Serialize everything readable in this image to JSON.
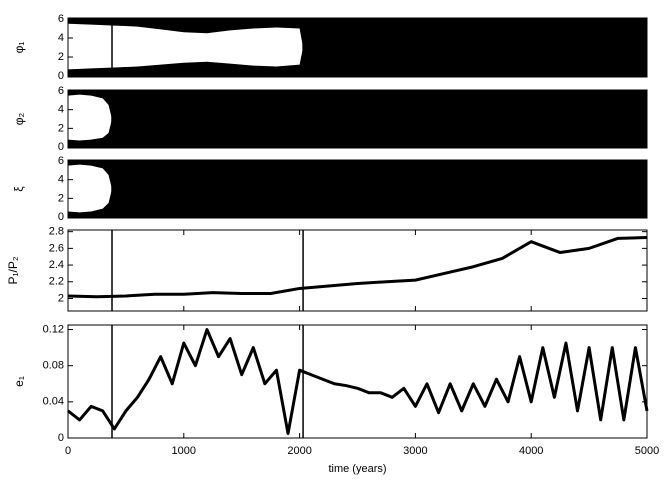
{
  "chart_data": [
    {
      "type": "band",
      "ylabel": "φ₁",
      "xlim": [
        0,
        5000
      ],
      "xticks": [
        0,
        1000,
        2000,
        3000,
        4000,
        5000
      ],
      "ylim": [
        -0.1,
        6.1
      ],
      "yticks": [
        0,
        2,
        4,
        6
      ],
      "color": "#000000",
      "vlines": [
        380,
        2030
      ],
      "gap": {
        "x": [
          0,
          200,
          400,
          600,
          800,
          1000,
          1200,
          1400,
          1600,
          1800,
          2000,
          2030
        ],
        "low": [
          0.7,
          0.8,
          0.9,
          1.0,
          1.2,
          1.4,
          1.5,
          1.3,
          1.1,
          1.0,
          1.2,
          3
        ],
        "high": [
          5.5,
          5.4,
          5.3,
          5.2,
          4.9,
          4.6,
          4.5,
          4.8,
          5.0,
          5.1,
          5.0,
          3
        ]
      }
    },
    {
      "type": "band",
      "ylabel": "φ₂",
      "xlim": [
        0,
        5000
      ],
      "xticks": [
        0,
        1000,
        2000,
        3000,
        4000,
        5000
      ],
      "ylim": [
        -0.1,
        6.1
      ],
      "yticks": [
        0,
        2,
        4,
        6
      ],
      "color": "#000000",
      "vlines": [
        380,
        2030
      ],
      "gap": {
        "x": [
          0,
          100,
          200,
          300,
          350,
          380
        ],
        "low": [
          0.8,
          0.7,
          0.8,
          1.0,
          1.5,
          3
        ],
        "high": [
          5.5,
          5.6,
          5.5,
          5.2,
          4.5,
          3
        ]
      }
    },
    {
      "type": "band",
      "ylabel": "ξ",
      "xlim": [
        0,
        5000
      ],
      "xticks": [
        0,
        1000,
        2000,
        3000,
        4000,
        5000
      ],
      "ylim": [
        -0.1,
        6.1
      ],
      "yticks": [
        0,
        2,
        4,
        6
      ],
      "color": "#000000",
      "vlines": [
        380,
        2030
      ],
      "gap": {
        "x": [
          0,
          100,
          200,
          300,
          350,
          380
        ],
        "low": [
          0.6,
          0.5,
          0.6,
          0.9,
          1.5,
          3
        ],
        "high": [
          5.5,
          5.6,
          5.5,
          5.2,
          4.5,
          3
        ]
      }
    },
    {
      "type": "line",
      "ylabel": "P₁/P₂",
      "xlim": [
        0,
        5000
      ],
      "xticks": [
        0,
        1000,
        2000,
        3000,
        4000,
        5000
      ],
      "ylim": [
        1.85,
        2.82
      ],
      "yticks": [
        2,
        2.2,
        2.4,
        2.6,
        2.8
      ],
      "color": "#000000",
      "vlines": [
        380,
        2030
      ],
      "x": [
        0,
        250,
        500,
        750,
        1000,
        1250,
        1500,
        1750,
        2000,
        2250,
        2500,
        2750,
        3000,
        3250,
        3500,
        3750,
        4000,
        4250,
        4500,
        4750,
        5000
      ],
      "values": [
        2.03,
        2.02,
        2.03,
        2.05,
        2.05,
        2.07,
        2.06,
        2.06,
        2.12,
        2.15,
        2.18,
        2.2,
        2.22,
        2.3,
        2.38,
        2.48,
        2.68,
        2.55,
        2.6,
        2.72,
        2.73
      ]
    },
    {
      "type": "line",
      "ylabel": "e₁",
      "xlabel": "time (years)",
      "xlim": [
        0,
        5000
      ],
      "xticks": [
        0,
        1000,
        2000,
        3000,
        4000,
        5000
      ],
      "ylim": [
        0,
        0.125
      ],
      "yticks": [
        0,
        0.04,
        0.08,
        0.12
      ],
      "color": "#000000",
      "vlines": [
        380,
        2030
      ],
      "x": [
        0,
        100,
        200,
        300,
        400,
        500,
        600,
        700,
        800,
        900,
        1000,
        1100,
        1200,
        1300,
        1400,
        1500,
        1600,
        1700,
        1800,
        1900,
        2000,
        2100,
        2200,
        2300,
        2400,
        2500,
        2600,
        2700,
        2800,
        2900,
        3000,
        3100,
        3200,
        3300,
        3400,
        3500,
        3600,
        3700,
        3800,
        3900,
        4000,
        4100,
        4200,
        4300,
        4400,
        4500,
        4600,
        4700,
        4800,
        4900,
        5000
      ],
      "values": [
        0.03,
        0.02,
        0.035,
        0.03,
        0.01,
        0.03,
        0.045,
        0.065,
        0.09,
        0.06,
        0.105,
        0.08,
        0.12,
        0.09,
        0.11,
        0.07,
        0.1,
        0.06,
        0.075,
        0.005,
        0.075,
        0.07,
        0.065,
        0.06,
        0.058,
        0.055,
        0.05,
        0.05,
        0.045,
        0.055,
        0.035,
        0.06,
        0.028,
        0.06,
        0.03,
        0.06,
        0.035,
        0.065,
        0.04,
        0.09,
        0.04,
        0.1,
        0.045,
        0.105,
        0.03,
        0.1,
        0.02,
        0.1,
        0.02,
        0.1,
        0.03
      ]
    }
  ]
}
